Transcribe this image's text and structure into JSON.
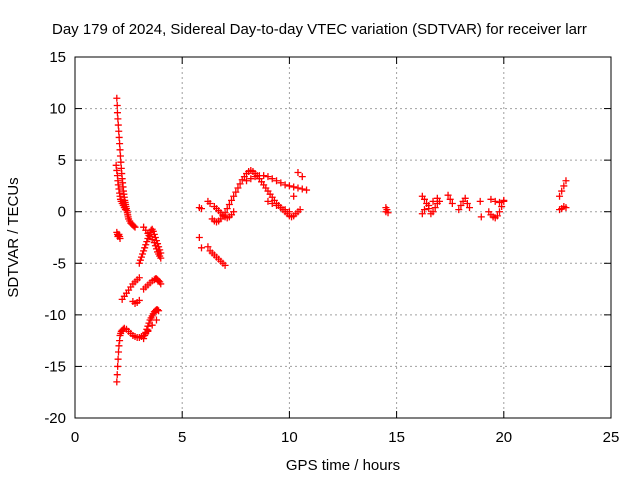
{
  "chart_data": {
    "type": "scatter",
    "title": "Day 179 of 2024, Sidereal Day-to-day VTEC variation (SDTVAR) for receiver larr",
    "xlabel": "GPS time / hours",
    "ylabel": "SDTVAR / TECUs",
    "xlim": [
      0,
      25
    ],
    "ylim": [
      -20,
      15
    ],
    "xticks": [
      "0",
      "5",
      "10",
      "15",
      "20",
      "25"
    ],
    "yticks": [
      "15",
      "10",
      "5",
      "0",
      "-5",
      "-10",
      "-15",
      "-20"
    ],
    "grid": true,
    "marker": "plus",
    "color": "#ff0000",
    "series": [
      {
        "x": [
          1.95,
          1.97,
          1.98,
          2.0,
          2.02,
          2.04,
          2.06,
          2.08,
          2.1,
          2.12,
          2.14,
          2.16,
          2.18,
          2.2,
          2.22,
          2.24,
          2.26,
          2.28,
          2.3,
          2.32,
          2.34,
          2.36,
          2.38,
          2.4,
          2.42,
          2.44,
          2.46,
          2.48,
          2.5,
          2.55,
          2.6,
          2.65,
          2.7,
          2.75,
          2.8,
          1.92,
          1.95,
          1.98,
          2.0,
          2.02,
          2.05,
          2.08,
          2.1,
          2.12,
          2.15,
          2.2,
          2.25,
          2.3,
          2.35,
          1.95,
          1.98,
          2.0,
          2.02,
          2.05,
          2.08,
          2.1,
          1.95,
          1.97,
          1.99,
          2.01,
          2.03,
          2.05,
          2.08,
          2.1,
          2.13,
          2.16,
          2.2,
          2.25,
          2.3,
          2.4,
          2.5,
          2.6,
          2.7,
          2.8,
          2.9,
          3.0,
          3.1,
          3.2,
          3.3,
          3.4,
          2.2,
          2.3,
          2.4,
          2.5,
          2.6,
          2.7,
          2.8,
          2.9,
          3.0,
          2.7,
          2.8,
          2.9,
          3.0,
          3.2,
          3.3,
          3.4,
          3.5,
          3.6,
          3.7,
          3.75,
          3.8,
          3.85,
          3.9,
          3.95,
          4.0,
          3.0,
          3.05,
          3.1,
          3.15,
          3.2,
          3.25,
          3.3,
          3.35,
          3.4,
          3.45,
          3.5,
          3.55,
          3.6,
          3.65,
          3.7,
          3.75,
          3.8,
          3.85,
          3.9,
          3.95,
          4.0,
          3.2,
          3.3,
          3.4,
          3.5,
          3.6,
          3.7,
          3.75,
          3.8,
          3.85,
          3.9,
          3.95,
          4.0,
          3.2,
          3.25,
          3.3,
          3.35,
          3.4,
          3.45,
          3.5,
          3.55,
          3.6,
          3.65,
          3.7,
          3.75,
          3.8,
          3.85,
          3.9,
          3.2,
          3.4,
          3.6,
          3.8,
          5.8,
          5.9,
          6.2,
          6.3,
          6.5,
          6.6,
          6.7,
          6.8,
          6.9,
          7.0,
          7.1,
          7.2,
          7.3,
          7.4,
          5.8,
          5.9,
          6.2,
          6.3,
          6.4,
          6.5,
          6.6,
          6.7,
          6.8,
          6.9,
          7.0,
          6.4,
          6.5,
          6.6,
          6.7,
          6.8,
          6.9,
          7.0,
          7.1,
          7.2,
          7.3,
          7.4,
          7.5,
          7.6,
          7.7,
          7.8,
          7.9,
          8.0,
          8.1,
          8.2,
          8.3,
          8.4,
          8.5,
          8.6,
          8.7,
          8.8,
          8.9,
          9.0,
          9.1,
          9.2,
          9.3,
          9.4,
          9.5,
          9.6,
          9.7,
          9.8,
          9.9,
          10.0,
          10.1,
          10.2,
          10.3,
          10.4,
          10.5,
          8.0,
          8.2,
          8.4,
          8.6,
          8.8,
          9.0,
          9.2,
          9.4,
          9.6,
          9.8,
          10.0,
          10.2,
          10.4,
          10.6,
          10.8,
          9.0,
          9.2,
          9.4,
          9.6,
          9.8,
          10.0,
          10.2,
          10.4,
          10.6,
          14.5,
          14.5,
          14.55,
          14.6,
          16.2,
          16.3,
          16.4,
          16.5,
          16.6,
          16.7,
          16.8,
          16.9,
          17.0,
          16.2,
          16.3,
          16.5,
          16.7,
          16.9,
          17.4,
          17.5,
          17.6,
          17.9,
          18.0,
          18.1,
          18.2,
          18.3,
          18.4,
          18.9,
          18.95,
          19.3,
          19.4,
          19.5,
          19.6,
          19.7,
          19.8,
          19.9,
          20.0,
          19.4,
          19.6,
          19.8,
          20.0,
          22.6,
          22.7,
          22.8,
          22.9,
          22.6,
          22.7,
          22.8,
          22.9
        ],
        "y": [
          11.0,
          10.3,
          9.6,
          9.0,
          8.4,
          7.8,
          7.2,
          6.6,
          6.0,
          5.4,
          4.8,
          4.2,
          3.7,
          3.2,
          2.8,
          2.4,
          2.0,
          1.7,
          1.4,
          1.1,
          0.9,
          0.7,
          0.5,
          0.3,
          0.1,
          -0.1,
          -0.3,
          -0.5,
          -0.7,
          -0.9,
          -1.1,
          -1.2,
          -1.3,
          -1.4,
          -1.5,
          4.5,
          4.0,
          3.5,
          3.0,
          2.6,
          2.2,
          1.8,
          1.5,
          1.2,
          1.0,
          0.8,
          0.6,
          0.4,
          0.2,
          -2.0,
          -2.2,
          -2.4,
          -2.3,
          -2.2,
          -2.4,
          -2.6,
          -16.5,
          -15.8,
          -15.0,
          -14.3,
          -13.6,
          -13.0,
          -12.5,
          -12.0,
          -11.8,
          -11.6,
          -11.5,
          -11.4,
          -11.3,
          -11.4,
          -11.6,
          -11.8,
          -12.0,
          -12.1,
          -12.2,
          -12.2,
          -12.1,
          -12.0,
          -11.8,
          -11.6,
          -8.5,
          -8.2,
          -7.9,
          -7.6,
          -7.3,
          -7.0,
          -6.8,
          -6.6,
          -6.4,
          -8.7,
          -8.9,
          -8.8,
          -8.6,
          -1.5,
          -1.8,
          -2.1,
          -2.4,
          -2.7,
          -3.0,
          -3.3,
          -3.6,
          -3.9,
          -4.1,
          -4.3,
          -4.5,
          -5.0,
          -4.7,
          -4.4,
          -4.1,
          -3.8,
          -3.5,
          -3.2,
          -2.9,
          -2.6,
          -2.3,
          -2.0,
          -1.8,
          -1.7,
          -1.9,
          -2.2,
          -2.5,
          -2.8,
          -3.1,
          -3.4,
          -3.7,
          -4.0,
          -7.5,
          -7.3,
          -7.1,
          -6.9,
          -6.7,
          -6.6,
          -6.5,
          -6.5,
          -6.6,
          -6.7,
          -6.8,
          -7.0,
          -12.3,
          -12.0,
          -11.7,
          -11.4,
          -11.1,
          -10.8,
          -10.5,
          -10.3,
          -10.1,
          -9.9,
          -9.7,
          -9.6,
          -9.5,
          -9.5,
          -9.6,
          -12.0,
          -11.5,
          -11.0,
          -10.5,
          0.4,
          0.3,
          1.0,
          0.8,
          0.5,
          0.3,
          0.1,
          -0.1,
          -0.3,
          -0.5,
          -0.6,
          -0.5,
          -0.3,
          0.0,
          -2.5,
          -3.5,
          -3.4,
          -3.8,
          -4.0,
          -4.2,
          -4.4,
          -4.6,
          -4.8,
          -5.0,
          -5.2,
          -0.7,
          -0.9,
          -1.0,
          -0.9,
          -0.7,
          -0.4,
          -0.1,
          0.3,
          0.7,
          1.1,
          1.5,
          1.9,
          2.3,
          2.7,
          3.1,
          3.4,
          3.7,
          3.9,
          4.0,
          3.9,
          3.7,
          3.5,
          3.2,
          2.9,
          2.6,
          2.3,
          2.0,
          1.7,
          1.4,
          1.1,
          0.8,
          0.6,
          0.4,
          0.2,
          0.0,
          -0.2,
          -0.4,
          -0.5,
          -0.4,
          -0.2,
          0.0,
          0.2,
          3.0,
          3.2,
          3.4,
          3.5,
          3.5,
          3.4,
          3.2,
          3.0,
          2.8,
          2.6,
          2.5,
          2.4,
          2.3,
          2.2,
          2.1,
          1.0,
          0.8,
          0.6,
          0.4,
          0.2,
          0.0,
          1.5,
          3.8,
          3.4,
          0.0,
          0.4,
          0.2,
          -0.1,
          1.5,
          1.2,
          0.8,
          0.3,
          -0.2,
          0.0,
          0.4,
          0.8,
          1.0,
          -0.2,
          0.2,
          0.6,
          1.0,
          1.3,
          1.6,
          1.2,
          0.8,
          0.2,
          0.6,
          1.0,
          1.3,
          0.8,
          0.4,
          1.0,
          -0.5,
          0.0,
          -0.3,
          -0.5,
          -0.6,
          -0.4,
          0.0,
          0.5,
          1.0,
          1.2,
          1.0,
          0.9,
          1.1,
          1.5,
          2.0,
          2.5,
          3.0,
          0.2,
          0.3,
          0.5,
          0.4
        ]
      }
    ]
  }
}
